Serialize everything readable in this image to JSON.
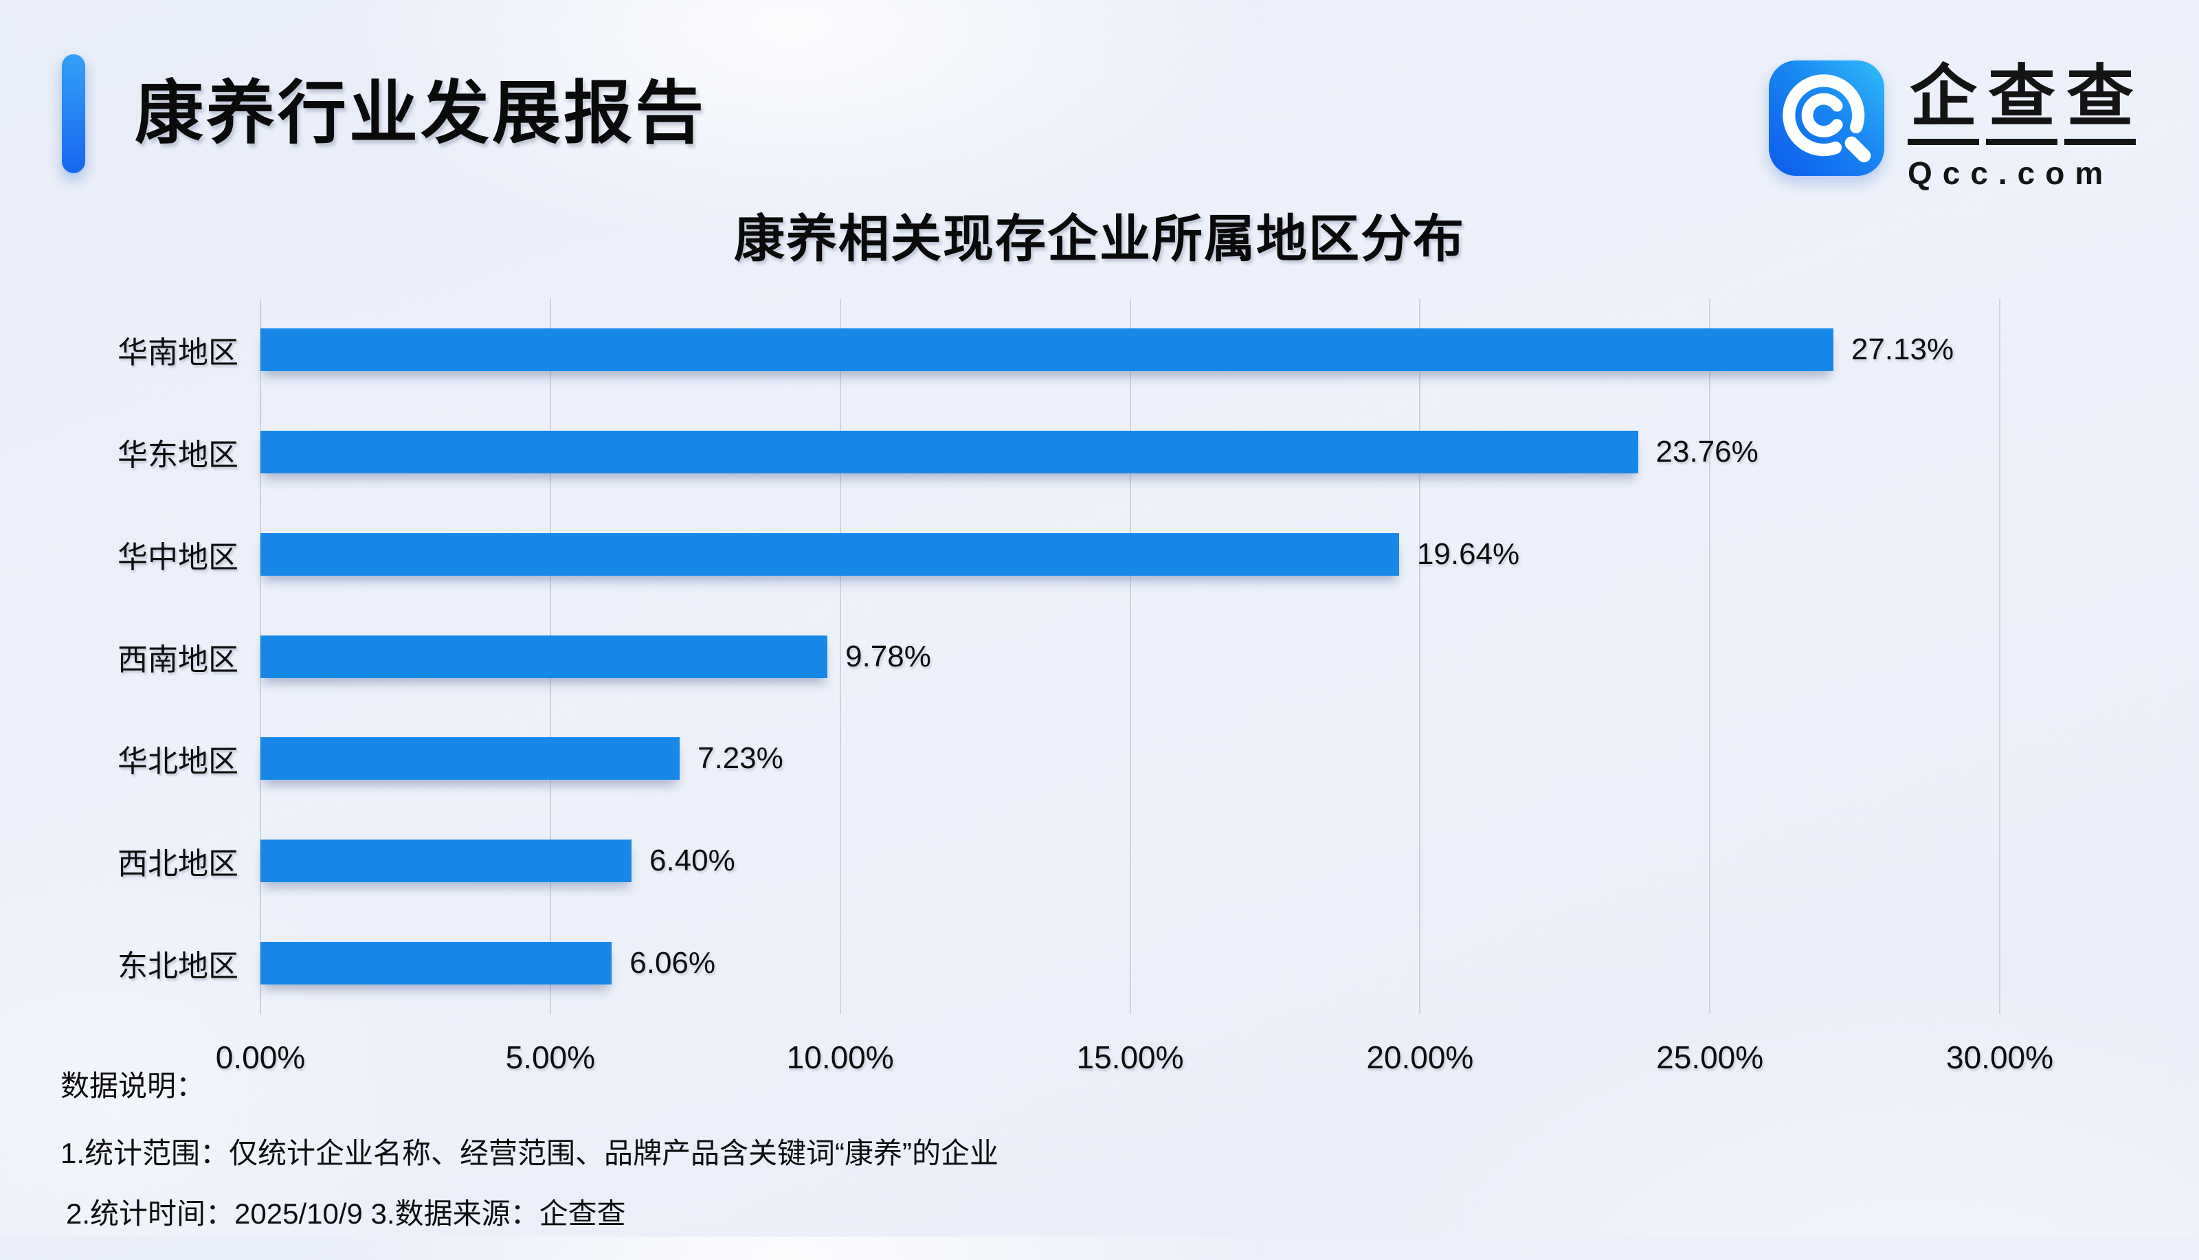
{
  "header": {
    "title": "康养行业发展报告"
  },
  "brand": {
    "name_cn": "企查查",
    "domain": "Qcc.com",
    "icon_color_start": "#0d5bec",
    "icon_color_end": "#32bdf9"
  },
  "chart_data": {
    "type": "bar",
    "orientation": "horizontal",
    "title": "康养相关现存企业所属地区分布",
    "categories": [
      "华南地区",
      "华东地区",
      "华中地区",
      "西南地区",
      "华北地区",
      "西北地区",
      "东北地区"
    ],
    "values": [
      27.13,
      23.76,
      19.64,
      9.78,
      7.23,
      6.4,
      6.06
    ],
    "value_labels": [
      "27.13%",
      "23.76%",
      "19.64%",
      "9.78%",
      "7.23%",
      "6.40%",
      "6.06%"
    ],
    "x_ticks": [
      "0.00%",
      "5.00%",
      "10.00%",
      "15.00%",
      "20.00%",
      "25.00%",
      "30.00%"
    ],
    "xlim": [
      0,
      30
    ],
    "grid": true,
    "legend_position": "none",
    "bar_color": "#1787e8",
    "gridline_color": "#ced2da"
  },
  "footnotes": {
    "heading": "数据说明：",
    "notes": [
      "1.统计范围：仅统计企业名称、经营范围、品牌产品含关键词“康养”的企业",
      "2.统计时间：2025/10/9  3.数据来源：企查查"
    ]
  }
}
